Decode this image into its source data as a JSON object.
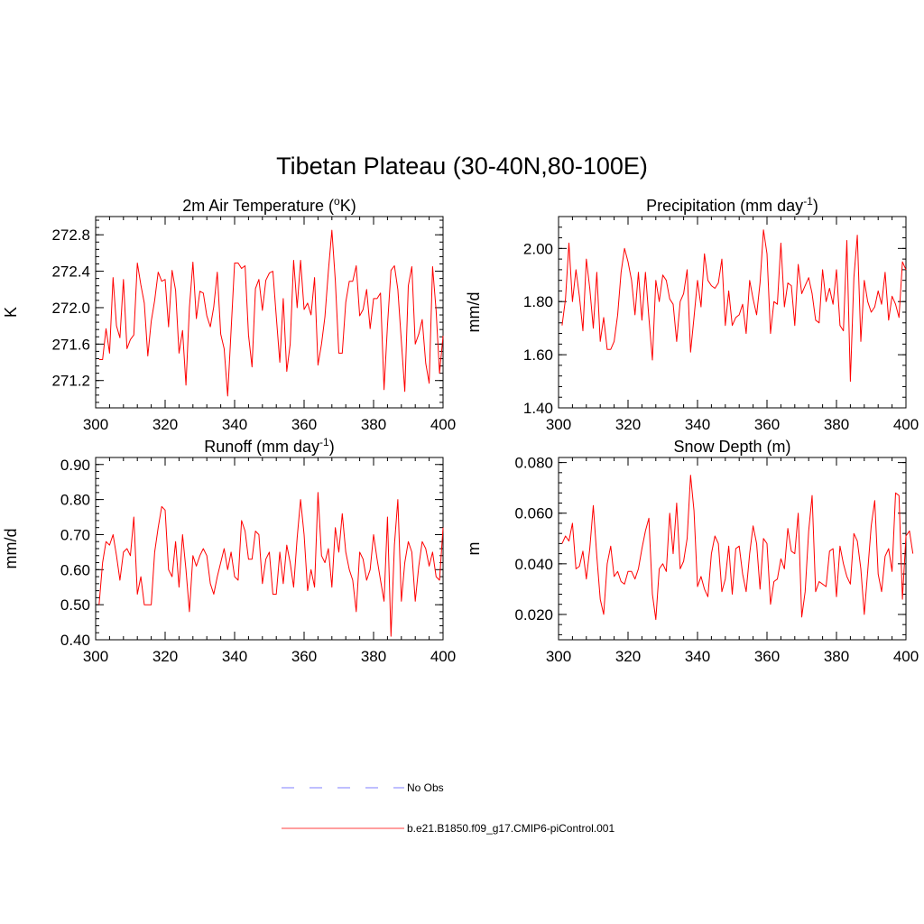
{
  "figure": {
    "title": "Tibetan Plateau (30-40N,80-100E)"
  },
  "legend": {
    "items": [
      {
        "label": "No Obs",
        "color": "#9999ff",
        "style": "dashed"
      },
      {
        "label": "b.e21.B1850.f09_g17.CMIP6-piControl.001",
        "color": "#ff6666",
        "style": "solid"
      }
    ]
  },
  "colors": {
    "series": "#ff0000",
    "axis": "#000000"
  },
  "chart_data": [
    {
      "type": "line",
      "title_main": "2m Air Temperature (",
      "title_sup": "o",
      "title_end": "K)",
      "ylabel": "K",
      "xlim": [
        300,
        400
      ],
      "ylim": [
        270.9,
        273.0
      ],
      "xticks": [
        300,
        320,
        340,
        360,
        380,
        400
      ],
      "xtick_labels": [
        "300",
        "320",
        "340",
        "360",
        "380",
        "400"
      ],
      "yticks": [
        271.2,
        271.6,
        272.0,
        272.4,
        272.8
      ],
      "ytick_labels": [
        "271.2",
        "271.6",
        "272.0",
        "272.4",
        "272.8"
      ],
      "x_start": 301,
      "values": [
        271.43,
        271.43,
        271.77,
        271.5,
        272.33,
        271.8,
        271.67,
        272.31,
        271.55,
        271.65,
        271.7,
        272.49,
        272.25,
        272.05,
        271.47,
        271.85,
        272.08,
        272.39,
        272.29,
        272.31,
        271.79,
        272.41,
        272.19,
        271.5,
        271.75,
        271.15,
        272.0,
        272.5,
        271.88,
        272.18,
        272.16,
        271.91,
        271.79,
        272.01,
        272.39,
        271.71,
        271.55,
        271.03,
        271.75,
        272.49,
        272.49,
        272.43,
        272.46,
        271.7,
        271.35,
        272.21,
        272.31,
        271.97,
        272.3,
        272.38,
        272.4,
        271.9,
        271.4,
        272.1,
        271.3,
        271.6,
        272.52,
        272.0,
        272.52,
        271.98,
        272.05,
        271.92,
        272.33,
        271.37,
        271.6,
        271.9,
        272.4,
        272.85,
        272.3,
        271.5,
        271.5,
        272.06,
        272.29,
        272.29,
        272.46,
        271.91,
        271.98,
        272.2,
        271.77,
        272.1,
        272.1,
        272.16,
        271.1,
        271.8,
        272.41,
        272.46,
        272.2,
        271.63,
        271.08,
        272.24,
        272.45,
        271.6,
        271.71,
        271.87,
        271.39,
        271.17,
        272.45,
        271.97,
        271.28,
        271.69
      ]
    },
    {
      "type": "line",
      "title_main": "Precipitation (mm day",
      "title_sup": "-1",
      "title_end": ")",
      "ylabel": "mm/d",
      "xlim": [
        300,
        400
      ],
      "ylim": [
        1.4,
        2.12
      ],
      "xticks": [
        300,
        320,
        340,
        360,
        380,
        400
      ],
      "xtick_labels": [
        "300",
        "320",
        "340",
        "360",
        "380",
        "400"
      ],
      "yticks": [
        1.4,
        1.6,
        1.8,
        2.0
      ],
      "ytick_labels": [
        "1.40",
        "1.60",
        "1.80",
        "2.00"
      ],
      "x_start": 301,
      "values": [
        1.71,
        1.81,
        2.02,
        1.8,
        1.92,
        1.82,
        1.69,
        1.96,
        1.85,
        1.7,
        1.91,
        1.65,
        1.74,
        1.62,
        1.62,
        1.65,
        1.75,
        1.91,
        2.0,
        1.95,
        1.88,
        1.75,
        1.91,
        1.73,
        1.91,
        1.74,
        1.58,
        1.88,
        1.8,
        1.9,
        1.88,
        1.81,
        1.79,
        1.65,
        1.8,
        1.83,
        1.92,
        1.61,
        1.74,
        1.88,
        1.78,
        1.98,
        1.88,
        1.86,
        1.85,
        1.87,
        1.96,
        1.71,
        1.84,
        1.71,
        1.74,
        1.75,
        1.79,
        1.68,
        1.88,
        1.81,
        1.75,
        1.87,
        2.07,
        1.98,
        1.68,
        1.8,
        1.79,
        2.02,
        1.78,
        1.87,
        1.86,
        1.71,
        1.94,
        1.83,
        1.86,
        1.89,
        1.83,
        1.73,
        1.72,
        1.92,
        1.8,
        1.85,
        1.79,
        1.92,
        1.71,
        1.69,
        2.03,
        1.5,
        1.89,
        2.05,
        1.65,
        1.88,
        1.8,
        1.76,
        1.78,
        1.84,
        1.79,
        1.91,
        1.73,
        1.82,
        1.79,
        1.74,
        1.95,
        1.92
      ]
    },
    {
      "type": "line",
      "title_main": "Runoff (mm day",
      "title_sup": "-1",
      "title_end": ")",
      "ylabel": "mm/d",
      "xlim": [
        300,
        400
      ],
      "ylim": [
        0.4,
        0.92
      ],
      "xticks": [
        300,
        320,
        340,
        360,
        380,
        400
      ],
      "xtick_labels": [
        "300",
        "320",
        "340",
        "360",
        "380",
        "400"
      ],
      "yticks": [
        0.4,
        0.5,
        0.6,
        0.7,
        0.8,
        0.9
      ],
      "ytick_labels": [
        "0.40",
        "0.50",
        "0.60",
        "0.70",
        "0.80",
        "0.90"
      ],
      "x_start": 301,
      "values": [
        0.5,
        0.62,
        0.68,
        0.67,
        0.7,
        0.64,
        0.57,
        0.65,
        0.66,
        0.64,
        0.75,
        0.53,
        0.58,
        0.5,
        0.5,
        0.5,
        0.65,
        0.72,
        0.78,
        0.77,
        0.6,
        0.58,
        0.68,
        0.55,
        0.7,
        0.6,
        0.48,
        0.64,
        0.61,
        0.64,
        0.66,
        0.64,
        0.56,
        0.53,
        0.58,
        0.62,
        0.66,
        0.6,
        0.65,
        0.58,
        0.57,
        0.74,
        0.71,
        0.63,
        0.63,
        0.71,
        0.7,
        0.56,
        0.63,
        0.65,
        0.53,
        0.53,
        0.65,
        0.56,
        0.67,
        0.62,
        0.55,
        0.69,
        0.8,
        0.7,
        0.54,
        0.6,
        0.55,
        0.82,
        0.64,
        0.62,
        0.66,
        0.55,
        0.72,
        0.65,
        0.76,
        0.65,
        0.6,
        0.57,
        0.48,
        0.65,
        0.63,
        0.57,
        0.6,
        0.7,
        0.63,
        0.57,
        0.51,
        0.75,
        0.41,
        0.67,
        0.8,
        0.51,
        0.62,
        0.68,
        0.65,
        0.51,
        0.61,
        0.68,
        0.66,
        0.61,
        0.65,
        0.58,
        0.57,
        0.72
      ]
    },
    {
      "type": "line",
      "title_main": "Snow Depth (m)",
      "title_sup": "",
      "title_end": "",
      "ylabel": "m",
      "xlim": [
        300,
        400
      ],
      "ylim": [
        0.01,
        0.082
      ],
      "xticks": [
        300,
        320,
        340,
        360,
        380,
        400
      ],
      "xtick_labels": [
        "300",
        "320",
        "340",
        "360",
        "380",
        "400"
      ],
      "yticks": [
        0.02,
        0.04,
        0.06,
        0.08
      ],
      "ytick_labels": [
        "0.020",
        "0.040",
        "0.060",
        "0.080"
      ],
      "x_start": 301,
      "values": [
        0.048,
        0.051,
        0.049,
        0.056,
        0.038,
        0.039,
        0.045,
        0.034,
        0.046,
        0.063,
        0.043,
        0.026,
        0.02,
        0.04,
        0.047,
        0.035,
        0.037,
        0.033,
        0.032,
        0.037,
        0.037,
        0.034,
        0.038,
        0.046,
        0.053,
        0.058,
        0.028,
        0.018,
        0.038,
        0.04,
        0.037,
        0.06,
        0.044,
        0.064,
        0.038,
        0.041,
        0.05,
        0.075,
        0.061,
        0.031,
        0.035,
        0.03,
        0.027,
        0.044,
        0.051,
        0.048,
        0.029,
        0.034,
        0.047,
        0.028,
        0.046,
        0.047,
        0.036,
        0.029,
        0.044,
        0.055,
        0.048,
        0.03,
        0.05,
        0.048,
        0.024,
        0.033,
        0.034,
        0.042,
        0.038,
        0.054,
        0.045,
        0.044,
        0.06,
        0.019,
        0.029,
        0.053,
        0.067,
        0.029,
        0.033,
        0.032,
        0.031,
        0.045,
        0.046,
        0.027,
        0.047,
        0.04,
        0.035,
        0.032,
        0.052,
        0.049,
        0.038,
        0.02,
        0.037,
        0.055,
        0.065,
        0.036,
        0.029,
        0.043,
        0.046,
        0.037,
        0.068,
        0.067,
        0.026,
        0.051,
        0.053,
        0.044
      ]
    }
  ]
}
